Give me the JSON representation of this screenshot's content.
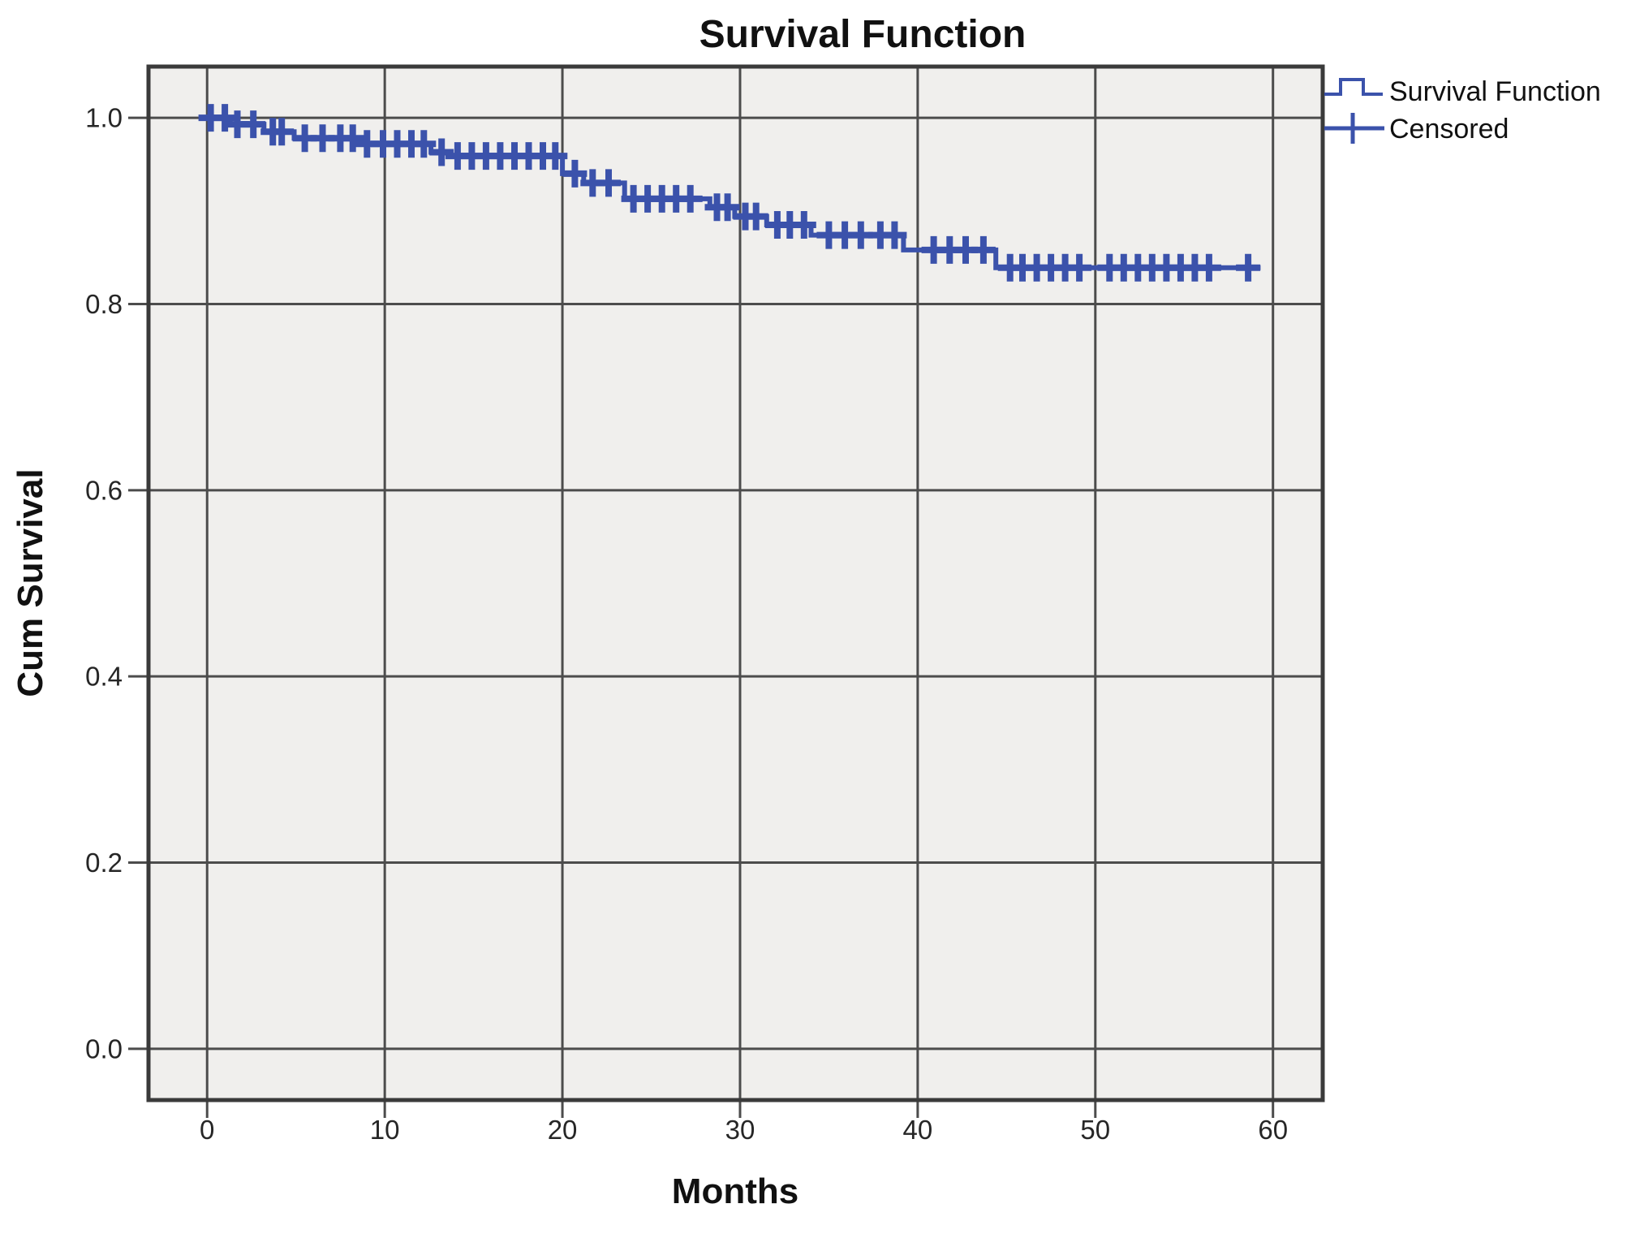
{
  "figure": {
    "kind": "statistical-plot",
    "source_style": "spss-kaplan-meier",
    "legend": {
      "position": "top-right-outside",
      "items": [
        {
          "label": "Survival Function",
          "symbol": "step-line"
        },
        {
          "label": "Censored",
          "symbol": "plus-marker"
        }
      ]
    }
  },
  "chart_data": {
    "type": "line",
    "subtype": "kaplan_meier_step",
    "title": "Survival Function",
    "xlabel": "Months",
    "ylabel": "Cum Survival",
    "xlim": [
      -3.3,
      62.8
    ],
    "ylim": [
      -0.055,
      1.055
    ],
    "grid": true,
    "legend_position": "top-right-outside",
    "x_ticks": [
      {
        "label": "0",
        "value": 0
      },
      {
        "label": "10",
        "value": 10
      },
      {
        "label": "20",
        "value": 20
      },
      {
        "label": "30",
        "value": 30
      },
      {
        "label": "40",
        "value": 40
      },
      {
        "label": "50",
        "value": 50
      },
      {
        "label": "60",
        "value": 60
      }
    ],
    "y_ticks": [
      {
        "label": "1.0",
        "value": 1.0
      },
      {
        "label": "0.8",
        "value": 0.8
      },
      {
        "label": "0.6",
        "value": 0.6
      },
      {
        "label": "0.4",
        "value": 0.4
      },
      {
        "label": "0.2",
        "value": 0.2
      },
      {
        "label": "0.0",
        "value": 0.0
      }
    ],
    "series": [
      {
        "name": "Survival Function",
        "style": "step",
        "end_time": 59.3,
        "points": [
          [
            0,
            1.0
          ],
          [
            1.3,
            0.993
          ],
          [
            3.2,
            0.985
          ],
          [
            4.9,
            0.978
          ],
          [
            8.6,
            0.972
          ],
          [
            12.6,
            0.963
          ],
          [
            13.7,
            0.959
          ],
          [
            20.0,
            0.94
          ],
          [
            21.2,
            0.93
          ],
          [
            23.5,
            0.913
          ],
          [
            28.3,
            0.904
          ],
          [
            29.7,
            0.894
          ],
          [
            31.5,
            0.885
          ],
          [
            34.0,
            0.874
          ],
          [
            39.2,
            0.858
          ],
          [
            44.4,
            0.839
          ]
        ]
      },
      {
        "name": "Censored",
        "style": "plus_markers",
        "points": [
          [
            0.2,
            1.0
          ],
          [
            1.0,
            1.0
          ],
          [
            1.7,
            0.993
          ],
          [
            2.6,
            0.993
          ],
          [
            3.7,
            0.985
          ],
          [
            4.2,
            0.985
          ],
          [
            5.5,
            0.978
          ],
          [
            6.5,
            0.978
          ],
          [
            7.5,
            0.978
          ],
          [
            8.2,
            0.978
          ],
          [
            9.0,
            0.972
          ],
          [
            9.9,
            0.972
          ],
          [
            10.7,
            0.972
          ],
          [
            11.5,
            0.972
          ],
          [
            12.2,
            0.972
          ],
          [
            13.2,
            0.963
          ],
          [
            14.1,
            0.959
          ],
          [
            14.9,
            0.959
          ],
          [
            15.7,
            0.959
          ],
          [
            16.5,
            0.959
          ],
          [
            17.3,
            0.959
          ],
          [
            18.1,
            0.959
          ],
          [
            18.9,
            0.959
          ],
          [
            19.6,
            0.959
          ],
          [
            20.7,
            0.94
          ],
          [
            21.7,
            0.93
          ],
          [
            22.6,
            0.93
          ],
          [
            24.0,
            0.913
          ],
          [
            24.8,
            0.913
          ],
          [
            25.6,
            0.913
          ],
          [
            26.4,
            0.913
          ],
          [
            27.2,
            0.913
          ],
          [
            28.7,
            0.904
          ],
          [
            29.3,
            0.904
          ],
          [
            30.3,
            0.894
          ],
          [
            30.9,
            0.894
          ],
          [
            32.1,
            0.885
          ],
          [
            32.8,
            0.885
          ],
          [
            33.6,
            0.885
          ],
          [
            35.0,
            0.874
          ],
          [
            35.9,
            0.874
          ],
          [
            36.8,
            0.874
          ],
          [
            37.9,
            0.874
          ],
          [
            38.7,
            0.874
          ],
          [
            40.9,
            0.858
          ],
          [
            41.8,
            0.858
          ],
          [
            42.7,
            0.858
          ],
          [
            43.7,
            0.858
          ],
          [
            45.2,
            0.839
          ],
          [
            45.9,
            0.839
          ],
          [
            46.7,
            0.839
          ],
          [
            47.5,
            0.839
          ],
          [
            48.3,
            0.839
          ],
          [
            49.1,
            0.839
          ],
          [
            50.8,
            0.839
          ],
          [
            51.6,
            0.839
          ],
          [
            52.4,
            0.839
          ],
          [
            53.2,
            0.839
          ],
          [
            54.0,
            0.839
          ],
          [
            54.8,
            0.839
          ],
          [
            55.6,
            0.839
          ],
          [
            56.4,
            0.839
          ],
          [
            58.6,
            0.839
          ]
        ]
      }
    ],
    "colors": {
      "line": "#3B52AB",
      "plot_background": "#F0EFED",
      "grid": "#4C4C4C",
      "frame": "#3A3A3A",
      "text": "#111111"
    }
  }
}
